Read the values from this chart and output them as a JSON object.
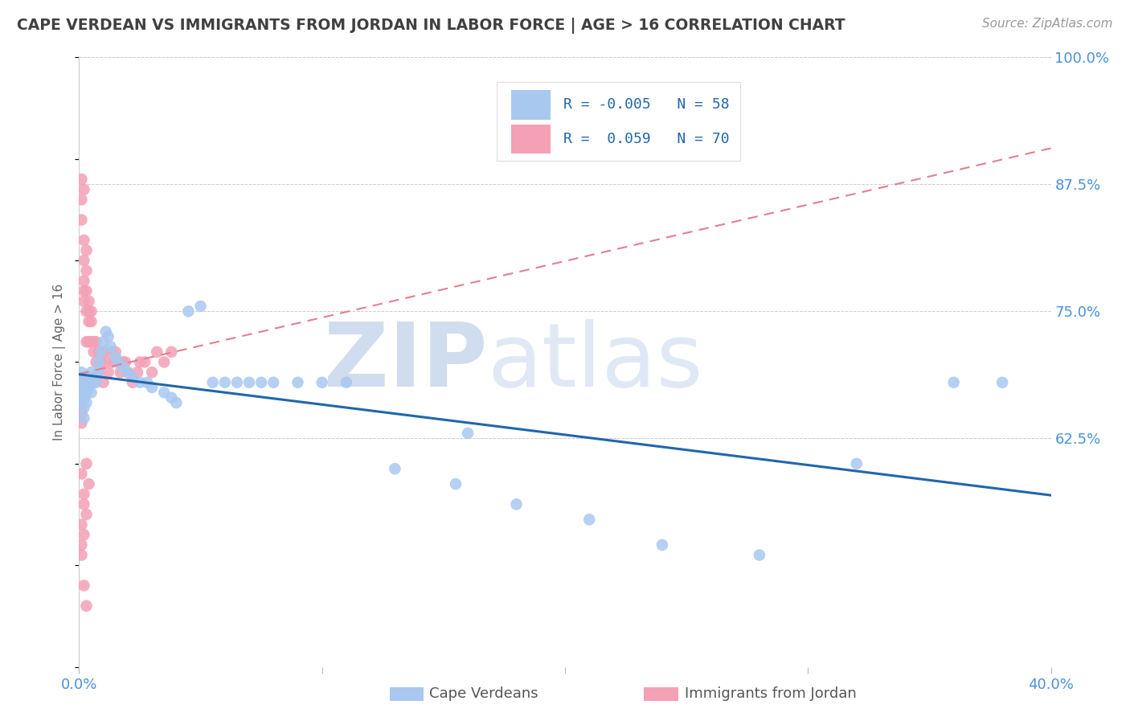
{
  "title": "CAPE VERDEAN VS IMMIGRANTS FROM JORDAN IN LABOR FORCE | AGE > 16 CORRELATION CHART",
  "source": "Source: ZipAtlas.com",
  "ylabel": "In Labor Force | Age > 16",
  "watermark_zip": "ZIP",
  "watermark_atlas": "atlas",
  "xlim": [
    0.0,
    0.4
  ],
  "ylim": [
    0.4,
    1.0
  ],
  "legend1_R": "-0.005",
  "legend1_N": "58",
  "legend2_R": "0.059",
  "legend2_N": "70",
  "blue_color": "#A8C8F0",
  "pink_color": "#F4A0B5",
  "blue_line_color": "#2166AC",
  "pink_line_color": "#E08090",
  "grid_color": "#CCCCCC",
  "title_color": "#404040",
  "axis_label_color": "#4A90D9",
  "source_color": "#999999",
  "blue_scatter_x": [
    0.001,
    0.001,
    0.001,
    0.001,
    0.002,
    0.002,
    0.002,
    0.002,
    0.002,
    0.003,
    0.003,
    0.003,
    0.004,
    0.004,
    0.005,
    0.005,
    0.005,
    0.006,
    0.007,
    0.008,
    0.008,
    0.009,
    0.01,
    0.011,
    0.012,
    0.013,
    0.015,
    0.016,
    0.018,
    0.02,
    0.022,
    0.025,
    0.028,
    0.03,
    0.035,
    0.038,
    0.04,
    0.045,
    0.05,
    0.055,
    0.06,
    0.065,
    0.07,
    0.075,
    0.08,
    0.09,
    0.1,
    0.11,
    0.13,
    0.155,
    0.18,
    0.21,
    0.24,
    0.28,
    0.32,
    0.36,
    0.38,
    0.16
  ],
  "blue_scatter_y": [
    0.68,
    0.69,
    0.67,
    0.66,
    0.685,
    0.675,
    0.665,
    0.655,
    0.645,
    0.68,
    0.67,
    0.66,
    0.685,
    0.675,
    0.69,
    0.68,
    0.67,
    0.685,
    0.68,
    0.69,
    0.7,
    0.71,
    0.72,
    0.73,
    0.725,
    0.715,
    0.705,
    0.7,
    0.695,
    0.69,
    0.685,
    0.68,
    0.68,
    0.675,
    0.67,
    0.665,
    0.66,
    0.75,
    0.755,
    0.68,
    0.68,
    0.68,
    0.68,
    0.68,
    0.68,
    0.68,
    0.68,
    0.68,
    0.595,
    0.58,
    0.56,
    0.545,
    0.52,
    0.51,
    0.6,
    0.68,
    0.68,
    0.63
  ],
  "pink_scatter_x": [
    0.001,
    0.001,
    0.001,
    0.001,
    0.001,
    0.001,
    0.001,
    0.001,
    0.002,
    0.002,
    0.002,
    0.002,
    0.002,
    0.002,
    0.002,
    0.003,
    0.003,
    0.003,
    0.003,
    0.003,
    0.003,
    0.004,
    0.004,
    0.004,
    0.004,
    0.004,
    0.005,
    0.005,
    0.005,
    0.005,
    0.006,
    0.006,
    0.006,
    0.007,
    0.007,
    0.008,
    0.008,
    0.009,
    0.01,
    0.01,
    0.011,
    0.012,
    0.013,
    0.014,
    0.015,
    0.016,
    0.017,
    0.018,
    0.019,
    0.02,
    0.022,
    0.024,
    0.025,
    0.027,
    0.03,
    0.032,
    0.035,
    0.038,
    0.001,
    0.002,
    0.003,
    0.002,
    0.001,
    0.002,
    0.003,
    0.003,
    0.004,
    0.002,
    0.001,
    0.001
  ],
  "pink_scatter_y": [
    0.88,
    0.86,
    0.84,
    0.68,
    0.67,
    0.66,
    0.65,
    0.64,
    0.87,
    0.82,
    0.8,
    0.78,
    0.77,
    0.76,
    0.68,
    0.81,
    0.79,
    0.77,
    0.75,
    0.72,
    0.68,
    0.76,
    0.75,
    0.74,
    0.72,
    0.68,
    0.75,
    0.74,
    0.72,
    0.68,
    0.72,
    0.71,
    0.68,
    0.72,
    0.7,
    0.71,
    0.69,
    0.7,
    0.71,
    0.68,
    0.7,
    0.69,
    0.71,
    0.7,
    0.71,
    0.7,
    0.69,
    0.7,
    0.7,
    0.69,
    0.68,
    0.69,
    0.7,
    0.7,
    0.69,
    0.71,
    0.7,
    0.71,
    0.59,
    0.57,
    0.55,
    0.53,
    0.51,
    0.48,
    0.46,
    0.6,
    0.58,
    0.56,
    0.54,
    0.52
  ]
}
